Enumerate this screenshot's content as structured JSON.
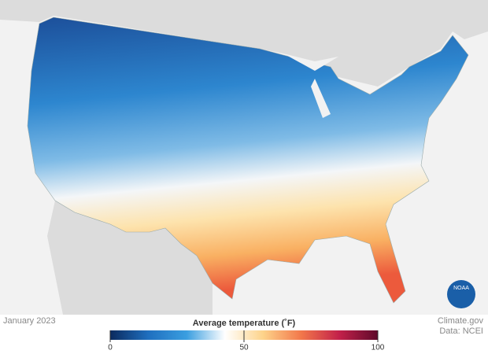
{
  "map": {
    "logo": "NOAA"
  },
  "date": "January 2023",
  "credit": "Climate.gov",
  "source": "Data: NCEI",
  "legend": {
    "title": "Average temperature (˚F)",
    "lim": [
      0,
      100
    ],
    "ticks": [
      0,
      50,
      100
    ],
    "colors": [
      "#0b2a5e",
      "#1f6fbf",
      "#3a9ee0",
      "#ffffff",
      "#fdd38a",
      "#f2774a",
      "#c2204a",
      "#5e0a2a"
    ]
  }
}
